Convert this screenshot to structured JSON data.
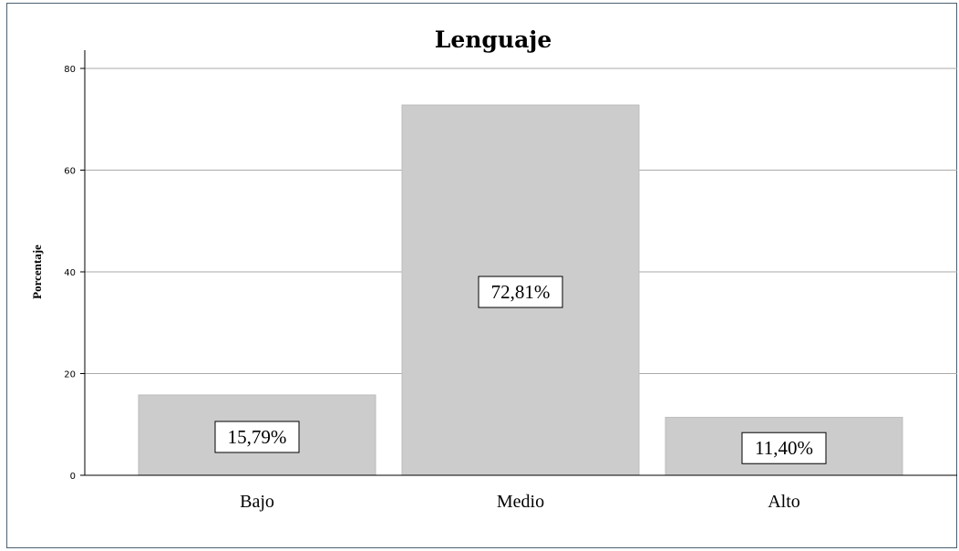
{
  "chart_data": {
    "type": "bar",
    "title": "Lenguaje",
    "ylabel": "Porcentaje",
    "xlabel": "",
    "categories": [
      "Bajo",
      "Medio",
      "Alto"
    ],
    "values": [
      15.79,
      72.81,
      11.4
    ],
    "data_labels": [
      "15,79%",
      "72,81%",
      "11,40%"
    ],
    "ylim": [
      0,
      80
    ],
    "yticks": [
      0,
      20,
      40,
      60,
      80
    ],
    "ytick_labels": [
      "0",
      "20",
      "40",
      "60",
      "80"
    ],
    "grid": true,
    "bar_color": "#cccccc",
    "grid_color": "#aaaaaa",
    "frame_color": "#4a6070"
  }
}
